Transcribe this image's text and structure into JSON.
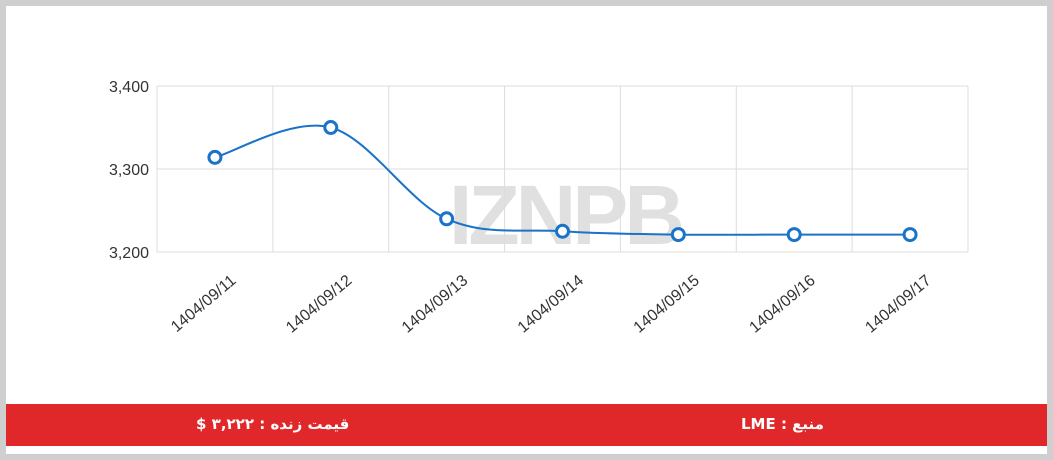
{
  "chart_data": {
    "type": "line",
    "watermark": "IZNPB",
    "categories": [
      "1404/09/11",
      "1404/09/12",
      "1404/09/13",
      "1404/09/14",
      "1404/09/15",
      "1404/09/16",
      "1404/09/17"
    ],
    "series": [
      {
        "name": "LME",
        "color": "#1a73c8",
        "values": [
          3314,
          3350,
          3240,
          3225,
          3221,
          3221,
          3221
        ]
      }
    ],
    "ylim": [
      3200,
      3400
    ],
    "yticks": [
      {
        "value": 3200,
        "label": "3,200"
      },
      {
        "value": 3300,
        "label": "3,300"
      },
      {
        "value": 3400,
        "label": "3,400"
      }
    ],
    "grid": true
  },
  "footer": {
    "price": "قیمت زنده : ۳,۲۲۲ $",
    "source": "منبع : LME"
  }
}
